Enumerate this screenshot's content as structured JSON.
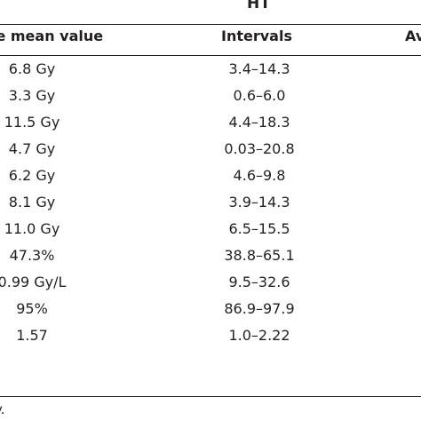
{
  "table": {
    "group_title": "HT",
    "headers": {
      "average": "ge mean value",
      "intervals": "Intervals",
      "next_group": "Av"
    },
    "rows": [
      {
        "average": "6.8 Gy",
        "intervals": "3.4–14.3"
      },
      {
        "average": "3.3 Gy",
        "intervals": "0.6–6.0"
      },
      {
        "average": "11.5 Gy",
        "intervals": "4.4–18.3"
      },
      {
        "average": "4.7 Gy",
        "intervals": "0.03–20.8"
      },
      {
        "average": "6.2 Gy",
        "intervals": "4.6–9.8"
      },
      {
        "average": "8.1 Gy",
        "intervals": "3.9–14.3"
      },
      {
        "average": "11.0 Gy",
        "intervals": "6.5–15.5"
      },
      {
        "average": "47.3%",
        "intervals": "38.8–65.1"
      },
      {
        "average": "0.99 Gy/L",
        "intervals": "9.5–32.6"
      },
      {
        "average": "95%",
        "intervals": "86.9–97.9"
      },
      {
        "average": "1.57",
        "intervals": "1.0–2.22"
      }
    ],
    "footnote": "y."
  }
}
